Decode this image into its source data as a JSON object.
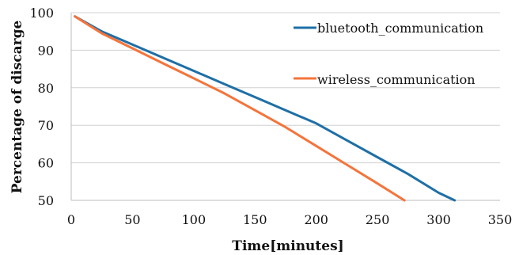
{
  "chart_data": {
    "type": "line",
    "title": "",
    "xlabel": "Time[minutes]",
    "ylabel": "Percentage of discarge",
    "xlim": [
      0,
      350
    ],
    "ylim": [
      50,
      100
    ],
    "xticks": [
      0,
      50,
      100,
      150,
      200,
      250,
      300,
      350
    ],
    "yticks": [
      50,
      60,
      70,
      80,
      90,
      100
    ],
    "grid": "horizontal",
    "legend_position": "top-right",
    "series": [
      {
        "name": "bluetooth_communication",
        "color": "#1f6fa6",
        "x": [
          3,
          25,
          50,
          75,
          100,
          125,
          150,
          175,
          200,
          225,
          250,
          275,
          300,
          313
        ],
        "y": [
          99,
          95,
          91.5,
          88,
          84.5,
          81,
          77.5,
          74,
          70.5,
          66,
          61.5,
          57,
          52,
          50
        ]
      },
      {
        "name": "wireless_communication",
        "color": "#f4743b",
        "x": [
          3,
          25,
          50,
          75,
          100,
          125,
          150,
          175,
          200,
          225,
          250,
          272
        ],
        "y": [
          99,
          94.5,
          90.5,
          86.5,
          82.5,
          78.5,
          74,
          69.5,
          64.5,
          59.5,
          54.5,
          50
        ]
      }
    ]
  }
}
